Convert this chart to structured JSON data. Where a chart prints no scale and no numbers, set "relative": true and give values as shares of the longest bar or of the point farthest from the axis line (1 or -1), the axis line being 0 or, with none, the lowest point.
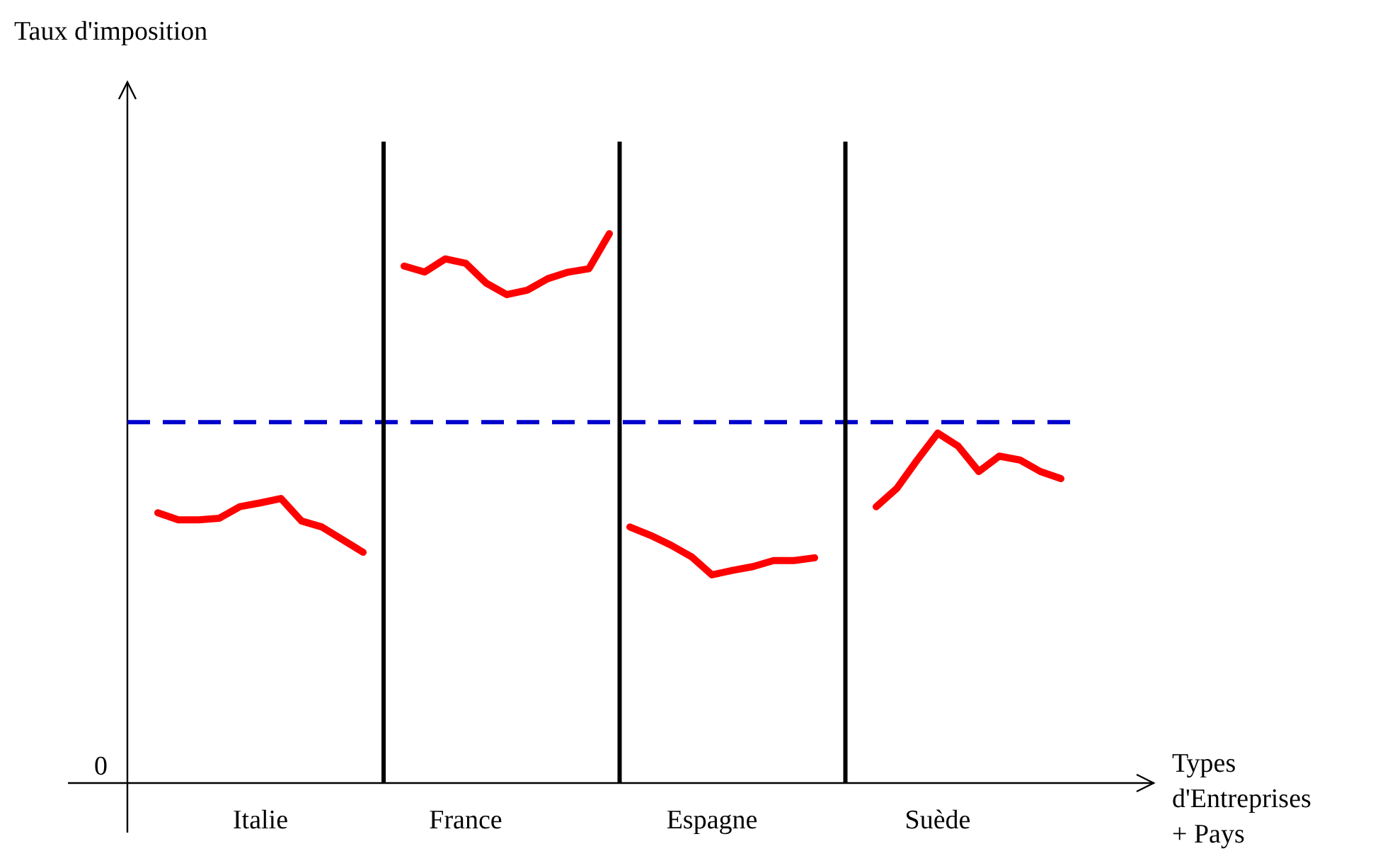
{
  "chart_data": {
    "type": "line",
    "relative": true,
    "tick_labels": "x",
    "xlabel": "Types d'Entreprises + Pays",
    "categories": [
      null,
      null,
      null,
      null,
      null,
      null,
      "Italie",
      null,
      null,
      null,
      null,
      null,
      null,
      null,
      null,
      null,
      "France",
      null,
      null,
      null,
      null,
      null,
      null,
      null,
      null,
      null,
      null,
      null,
      "Espagne",
      null,
      null,
      null,
      null,
      null,
      null,
      null,
      null,
      null,
      null,
      "Suède",
      null,
      null,
      null,
      null,
      null,
      null,
      null,
      null,
      null,
      null
    ],
    "annotations": [
      "0",
      "Taux d'imposition"
    ],
    "ref_lines": [
      {
        "axis": "y",
        "value": 0.657,
        "color": "#0000cc",
        "line_style": "dashed"
      }
    ],
    "series": [
      {
        "color": "#ff0000",
        "values": [
          null,
          0.492,
          0.479,
          0.479,
          0.482,
          0.503,
          0.51,
          0.518,
          0.477,
          0.466,
          0.443,
          0.42,
          null,
          null,
          null,
          null,
          null,
          null,
          null,
          null,
          null,
          null,
          null,
          null,
          null,
          null,
          null,
          null,
          null,
          null,
          null,
          null,
          null,
          null,
          null,
          null,
          null,
          null,
          null,
          null,
          null,
          null,
          null,
          null,
          null,
          null,
          null,
          null,
          null,
          null
        ]
      },
      {
        "color": "#ff0000",
        "values": [
          null,
          null,
          null,
          null,
          null,
          null,
          null,
          null,
          null,
          null,
          null,
          null,
          null,
          0.941,
          0.93,
          0.954,
          0.946,
          0.91,
          0.889,
          0.897,
          0.918,
          0.93,
          0.936,
          1.0,
          null,
          null,
          null,
          null,
          null,
          null,
          null,
          null,
          null,
          null,
          null,
          null,
          null,
          null,
          null,
          null,
          null,
          null,
          null,
          null,
          null,
          null,
          null,
          null,
          null,
          null
        ]
      },
      {
        "color": "#ff0000",
        "values": [
          null,
          null,
          null,
          null,
          null,
          null,
          null,
          null,
          null,
          null,
          null,
          null,
          null,
          null,
          null,
          null,
          null,
          null,
          null,
          null,
          null,
          null,
          null,
          null,
          0.466,
          0.451,
          0.433,
          0.412,
          0.379,
          0.387,
          0.394,
          0.405,
          0.405,
          0.41,
          null,
          null,
          null,
          null,
          null,
          null,
          null,
          null,
          null,
          null,
          null,
          null,
          null,
          null,
          null,
          null
        ]
      },
      {
        "color": "#ff0000",
        "values": [
          null,
          null,
          null,
          null,
          null,
          null,
          null,
          null,
          null,
          null,
          null,
          null,
          null,
          null,
          null,
          null,
          null,
          null,
          null,
          null,
          null,
          null,
          null,
          null,
          null,
          null,
          null,
          null,
          null,
          null,
          null,
          null,
          null,
          null,
          null,
          null,
          0.503,
          0.536,
          0.588,
          0.637,
          0.613,
          0.567,
          0.595,
          0.588,
          0.567,
          0.554,
          null,
          null,
          null,
          null
        ]
      }
    ]
  }
}
